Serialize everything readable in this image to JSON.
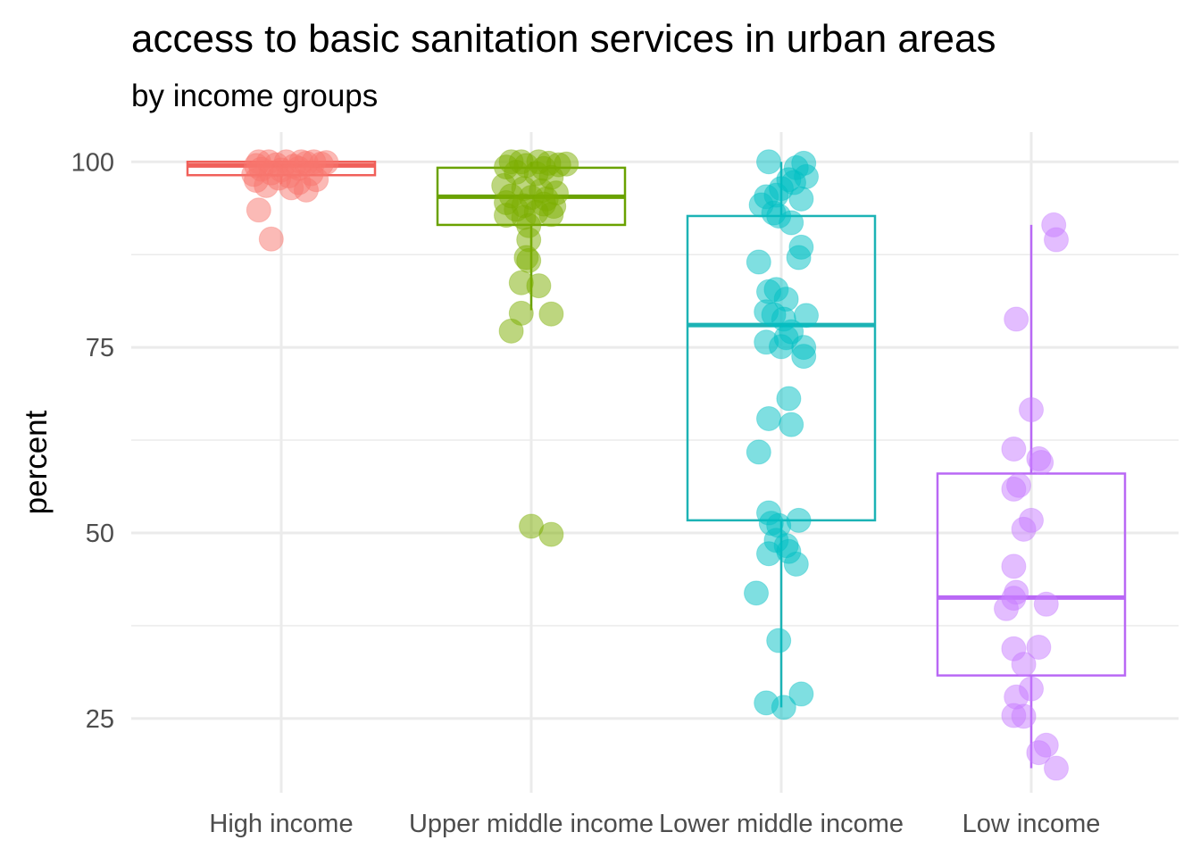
{
  "chart_data": {
    "type": "boxplot",
    "title": "access to basic sanitation services in urban areas",
    "subtitle": "by income groups",
    "xlabel": "",
    "ylabel": "percent",
    "ylim": [
      15,
      104
    ],
    "yticks": [
      25,
      50,
      75,
      100
    ],
    "categories": [
      "High income",
      "Upper middle income",
      "Lower middle income",
      "Low income"
    ],
    "colors": [
      "#f8766d",
      "#7cae00",
      "#00bfc4",
      "#c77cff"
    ],
    "box_stroke_colors": [
      "#f0605a",
      "#6aa200",
      "#1cb3b5",
      "#b968f5"
    ],
    "boxes": [
      {
        "q1": 98.2,
        "median": 99.5,
        "q3": 100,
        "whisker_low": 97,
        "whisker_high": 100
      },
      {
        "q1": 91.5,
        "median": 95.3,
        "q3": 99.2,
        "whisker_low": 80,
        "whisker_high": 100
      },
      {
        "q1": 51.7,
        "median": 78,
        "q3": 92.7,
        "whisker_low": 26.5,
        "whisker_high": 100
      },
      {
        "q1": 30.8,
        "median": 41.3,
        "q3": 58,
        "whisker_low": 18.3,
        "whisker_high": 91.5
      }
    ],
    "points": [
      [
        {
          "x": -0.09,
          "y": 100
        },
        {
          "x": -0.05,
          "y": 100
        },
        {
          "x": 0.02,
          "y": 100
        },
        {
          "x": 0.08,
          "y": 100
        },
        {
          "x": 0.13,
          "y": 100
        },
        {
          "x": 0.18,
          "y": 99.9
        },
        {
          "x": -0.1,
          "y": 99.5
        },
        {
          "x": -0.02,
          "y": 99.6
        },
        {
          "x": 0.05,
          "y": 99.4
        },
        {
          "x": 0.1,
          "y": 99.8
        },
        {
          "x": 0.16,
          "y": 99.7
        },
        {
          "x": -0.08,
          "y": 99
        },
        {
          "x": 0.0,
          "y": 98.9
        },
        {
          "x": 0.07,
          "y": 99.1
        },
        {
          "x": -0.11,
          "y": 98.3
        },
        {
          "x": -0.04,
          "y": 98.5
        },
        {
          "x": 0.03,
          "y": 98.1
        },
        {
          "x": 0.12,
          "y": 98.4
        },
        {
          "x": -0.1,
          "y": 97.5
        },
        {
          "x": -0.01,
          "y": 97.8
        },
        {
          "x": 0.07,
          "y": 97.2
        },
        {
          "x": 0.14,
          "y": 97.6
        },
        {
          "x": -0.06,
          "y": 96.8
        },
        {
          "x": 0.04,
          "y": 96.5
        },
        {
          "x": 0.1,
          "y": 96.2
        },
        {
          "x": -0.09,
          "y": 93.5
        },
        {
          "x": -0.04,
          "y": 89.6
        }
      ],
      [
        {
          "x": -0.08,
          "y": 100
        },
        {
          "x": -0.04,
          "y": 100
        },
        {
          "x": 0.03,
          "y": 100
        },
        {
          "x": 0.07,
          "y": 99.8
        },
        {
          "x": -0.1,
          "y": 99.3
        },
        {
          "x": -0.02,
          "y": 99.5
        },
        {
          "x": 0.05,
          "y": 99.1
        },
        {
          "x": 0.11,
          "y": 99.6
        },
        {
          "x": 0.14,
          "y": 99.7
        },
        {
          "x": -0.06,
          "y": 98.6
        },
        {
          "x": 0.02,
          "y": 98.4
        },
        {
          "x": 0.08,
          "y": 97.9
        },
        {
          "x": -0.11,
          "y": 96.8
        },
        {
          "x": -0.03,
          "y": 96.4
        },
        {
          "x": 0.04,
          "y": 96.1
        },
        {
          "x": 0.1,
          "y": 95.8
        },
        {
          "x": -0.08,
          "y": 95.4
        },
        {
          "x": 0.0,
          "y": 95.2
        },
        {
          "x": 0.06,
          "y": 95
        },
        {
          "x": -0.1,
          "y": 94.5
        },
        {
          "x": -0.03,
          "y": 94.1
        },
        {
          "x": 0.05,
          "y": 94.3
        },
        {
          "x": 0.09,
          "y": 94
        },
        {
          "x": -0.06,
          "y": 93.6
        },
        {
          "x": 0.02,
          "y": 93.2
        },
        {
          "x": 0.08,
          "y": 92.9
        },
        {
          "x": -0.1,
          "y": 92.8
        },
        {
          "x": -0.03,
          "y": 92.5
        },
        {
          "x": -0.01,
          "y": 91.4
        },
        {
          "x": -0.01,
          "y": 89.5
        },
        {
          "x": -0.02,
          "y": 87.1
        },
        {
          "x": -0.01,
          "y": 86.7
        },
        {
          "x": -0.04,
          "y": 83.7
        },
        {
          "x": 0.03,
          "y": 83.3
        },
        {
          "x": -0.04,
          "y": 79.6
        },
        {
          "x": 0.08,
          "y": 79.5
        },
        {
          "x": -0.08,
          "y": 77.2
        },
        {
          "x": 0.0,
          "y": 50.9
        },
        {
          "x": 0.08,
          "y": 49.8
        }
      ],
      [
        {
          "x": -0.05,
          "y": 100
        },
        {
          "x": 0.06,
          "y": 99.2
        },
        {
          "x": 0.09,
          "y": 99.8
        },
        {
          "x": 0.1,
          "y": 98
        },
        {
          "x": 0.03,
          "y": 97.6
        },
        {
          "x": 0.05,
          "y": 97.2
        },
        {
          "x": 0.0,
          "y": 96.4
        },
        {
          "x": 0.08,
          "y": 95
        },
        {
          "x": -0.06,
          "y": 95.3
        },
        {
          "x": -0.02,
          "y": 95.5
        },
        {
          "x": -0.08,
          "y": 94.2
        },
        {
          "x": -0.03,
          "y": 93.1
        },
        {
          "x": -0.01,
          "y": 92.7
        },
        {
          "x": 0.04,
          "y": 91.8
        },
        {
          "x": 0.08,
          "y": 88.5
        },
        {
          "x": 0.07,
          "y": 87.1
        },
        {
          "x": -0.09,
          "y": 86.5
        },
        {
          "x": -0.05,
          "y": 82.5
        },
        {
          "x": -0.02,
          "y": 82.8
        },
        {
          "x": 0.02,
          "y": 81.5
        },
        {
          "x": -0.06,
          "y": 79.8
        },
        {
          "x": -0.03,
          "y": 79.4
        },
        {
          "x": 0.01,
          "y": 78.8
        },
        {
          "x": 0.1,
          "y": 79.3
        },
        {
          "x": 0.04,
          "y": 77.1
        },
        {
          "x": 0.02,
          "y": 76.3
        },
        {
          "x": -0.06,
          "y": 75.7
        },
        {
          "x": 0.0,
          "y": 75.1
        },
        {
          "x": 0.09,
          "y": 75
        },
        {
          "x": 0.09,
          "y": 73.8
        },
        {
          "x": 0.03,
          "y": 68.1
        },
        {
          "x": -0.05,
          "y": 65.4
        },
        {
          "x": 0.04,
          "y": 64.6
        },
        {
          "x": -0.09,
          "y": 60.9
        },
        {
          "x": -0.05,
          "y": 52.7
        },
        {
          "x": -0.04,
          "y": 51.3
        },
        {
          "x": -0.01,
          "y": 51
        },
        {
          "x": 0.07,
          "y": 51.7
        },
        {
          "x": -0.02,
          "y": 49
        },
        {
          "x": 0.02,
          "y": 48.3
        },
        {
          "x": -0.05,
          "y": 47.2
        },
        {
          "x": 0.03,
          "y": 47.5
        },
        {
          "x": 0.06,
          "y": 45.8
        },
        {
          "x": -0.1,
          "y": 41.9
        },
        {
          "x": -0.01,
          "y": 35.5
        },
        {
          "x": -0.06,
          "y": 27.1
        },
        {
          "x": 0.01,
          "y": 26.5
        },
        {
          "x": 0.08,
          "y": 28.3
        }
      ],
      [
        {
          "x": 0.09,
          "y": 91.5
        },
        {
          "x": 0.1,
          "y": 89.5
        },
        {
          "x": -0.06,
          "y": 78.8
        },
        {
          "x": 0.0,
          "y": 66.6
        },
        {
          "x": -0.07,
          "y": 61.3
        },
        {
          "x": 0.03,
          "y": 60
        },
        {
          "x": 0.04,
          "y": 59.5
        },
        {
          "x": -0.05,
          "y": 56.4
        },
        {
          "x": -0.07,
          "y": 55.9
        },
        {
          "x": 0.0,
          "y": 51.7
        },
        {
          "x": -0.03,
          "y": 50.5
        },
        {
          "x": -0.07,
          "y": 45.5
        },
        {
          "x": -0.06,
          "y": 42
        },
        {
          "x": -0.07,
          "y": 41.2
        },
        {
          "x": 0.06,
          "y": 40.4
        },
        {
          "x": -0.1,
          "y": 39.8
        },
        {
          "x": -0.07,
          "y": 34.4
        },
        {
          "x": 0.03,
          "y": 34.6
        },
        {
          "x": -0.03,
          "y": 32.3
        },
        {
          "x": 0.0,
          "y": 29
        },
        {
          "x": -0.06,
          "y": 27.9
        },
        {
          "x": -0.07,
          "y": 25.4
        },
        {
          "x": -0.03,
          "y": 25.3
        },
        {
          "x": 0.06,
          "y": 21.4
        },
        {
          "x": 0.03,
          "y": 20.4
        },
        {
          "x": 0.1,
          "y": 18.3
        }
      ]
    ],
    "grid": true,
    "legend": "none"
  }
}
